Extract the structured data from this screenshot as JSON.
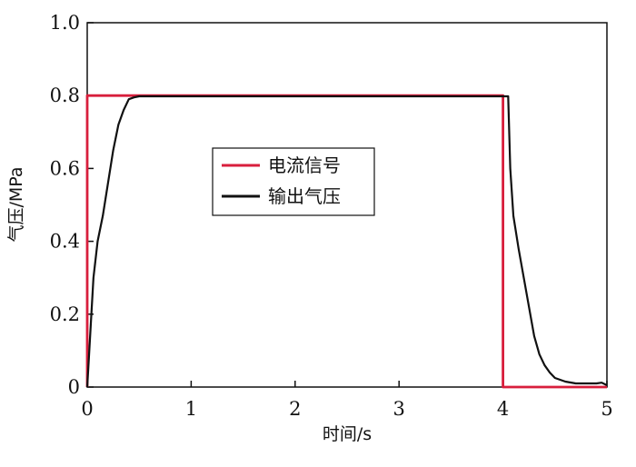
{
  "chart_data": {
    "type": "line",
    "title": "",
    "xlabel": "时间/s",
    "ylabel": "气压/MPa",
    "xlim": [
      0,
      5
    ],
    "ylim": [
      0,
      1.0
    ],
    "x_ticks": [
      0,
      1,
      2,
      3,
      4,
      5
    ],
    "x_tick_labels": [
      "0",
      "1",
      "2",
      "3",
      "4",
      "5"
    ],
    "y_ticks": [
      0,
      0.2,
      0.4,
      0.6,
      0.8,
      1.0
    ],
    "y_tick_labels": [
      "0",
      "0.2",
      "0.4",
      "0.6",
      "0.8",
      "1.0"
    ],
    "grid": false,
    "legend_position": "center-left",
    "series": [
      {
        "name": "电流信号",
        "color": "#d81e3c",
        "x": [
          0,
          0,
          4.0,
          4.0,
          5.0
        ],
        "y": [
          0,
          0.8,
          0.8,
          0.0,
          0.0
        ]
      },
      {
        "name": "输出气压",
        "color": "#111111",
        "x": [
          0,
          0.03,
          0.06,
          0.1,
          0.15,
          0.2,
          0.25,
          0.3,
          0.35,
          0.4,
          0.45,
          0.5,
          1.0,
          2.0,
          3.0,
          3.9,
          4.05,
          4.07,
          4.1,
          4.15,
          4.2,
          4.25,
          4.3,
          4.35,
          4.4,
          4.45,
          4.5,
          4.6,
          4.7,
          4.8,
          4.9,
          4.95,
          5.0
        ],
        "y": [
          0,
          0.15,
          0.3,
          0.4,
          0.47,
          0.56,
          0.65,
          0.72,
          0.76,
          0.79,
          0.795,
          0.798,
          0.798,
          0.798,
          0.798,
          0.798,
          0.798,
          0.6,
          0.47,
          0.38,
          0.3,
          0.22,
          0.14,
          0.09,
          0.06,
          0.04,
          0.025,
          0.015,
          0.01,
          0.01,
          0.01,
          0.012,
          0.005
        ]
      }
    ]
  }
}
